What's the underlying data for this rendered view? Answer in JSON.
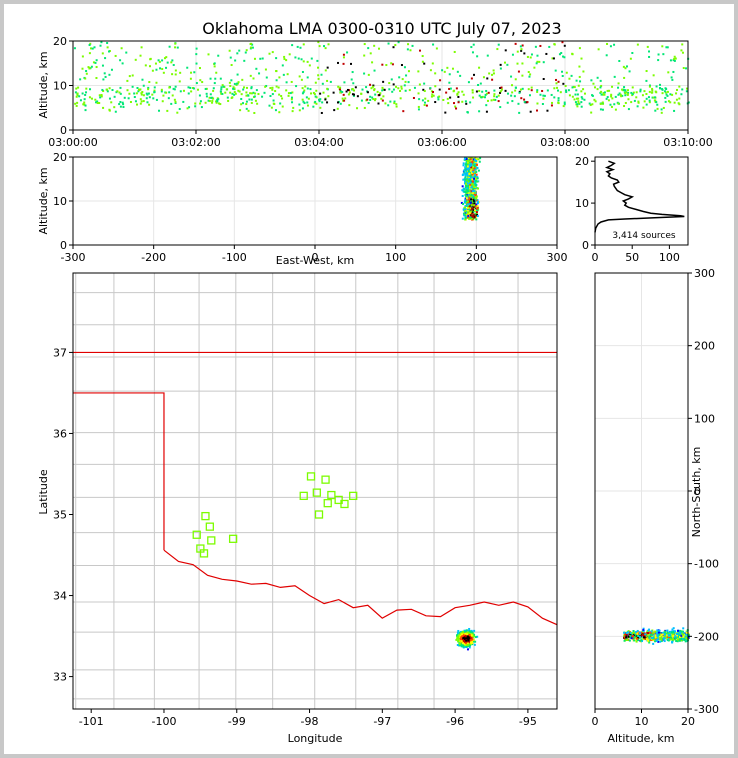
{
  "figure": {
    "title": "Oklahoma LMA 0300-0310 UTC July 07, 2023",
    "source_count_label": "3,414 sources"
  },
  "colors": {
    "frame": "#c8c8c8",
    "grid": "#e6e6e6",
    "county_lines": "#c8c8c8",
    "state_border": "#e00000",
    "stations": "#7cfc00",
    "profile_line": "#000000",
    "density_scale": [
      "#0000ff",
      "#00bfff",
      "#00e676",
      "#7cfc00",
      "#ffff00",
      "#ff4000",
      "#c00000",
      "#000000"
    ]
  },
  "chart_data": [
    {
      "type": "scatter",
      "panel": "time-height",
      "xlabel": "",
      "ylabel": "Altitude, km",
      "xlim_min": [
        0,
        10
      ],
      "ylim": [
        0,
        20
      ],
      "x_ticks": [
        "03:00:00",
        "03:02:00",
        "03:04:00",
        "03:06:00",
        "03:08:00",
        "03:10:00"
      ],
      "y_ticks": [
        0,
        10,
        20
      ],
      "grid": true,
      "density": "source density, colored"
    },
    {
      "type": "scatter",
      "panel": "east-west-height",
      "xlabel": "East-West, km",
      "ylabel": "Altitude, km",
      "xlim": [
        -300,
        300
      ],
      "ylim": [
        0,
        20
      ],
      "x_ticks": [
        -300,
        -200,
        -100,
        0,
        100,
        200,
        300
      ],
      "y_ticks": [
        0,
        10,
        20
      ],
      "cluster": {
        "x_range": [
          170,
          215
        ],
        "y_range": [
          6,
          20
        ]
      },
      "grid": true
    },
    {
      "type": "line",
      "panel": "altitude-histogram",
      "xlabel": "",
      "ylabel": "",
      "xlim": [
        0,
        125
      ],
      "ylim": [
        0,
        21
      ],
      "x_ticks": [
        0,
        50,
        100
      ],
      "y_ticks": [
        0,
        10,
        20
      ],
      "series": [
        {
          "altitude": [
            3,
            4,
            5,
            5.5,
            6,
            6.2,
            6.5,
            6.8,
            7,
            7.3,
            7.6,
            8,
            8.5,
            9,
            9.5,
            10,
            10.5,
            11,
            11.5,
            12,
            12.5,
            13,
            13.5,
            14,
            14.5,
            15,
            15.5,
            16,
            16.5,
            17,
            17.5,
            18,
            18.5,
            19,
            19.5,
            20
          ],
          "count": [
            0,
            1,
            4,
            8,
            18,
            40,
            80,
            120,
            115,
            90,
            75,
            65,
            55,
            45,
            40,
            42,
            38,
            45,
            50,
            40,
            35,
            30,
            28,
            26,
            25,
            32,
            30,
            22,
            18,
            20,
            16,
            24,
            16,
            22,
            26,
            18
          ]
        }
      ],
      "annotation": "3,414 sources"
    },
    {
      "type": "scatter",
      "panel": "plan-view",
      "xlabel": "Longitude",
      "ylabel": "Latitude",
      "xlim": [
        -101.25,
        -94.6
      ],
      "ylim": [
        32.6,
        37.98
      ],
      "x_ticks": [
        -101,
        -100,
        -99,
        -98,
        -97,
        -96,
        -95
      ],
      "y_ticks": [
        33,
        34,
        35,
        36,
        37
      ],
      "stations": [
        [
          -99.43,
          34.98
        ],
        [
          -99.37,
          34.85
        ],
        [
          -99.55,
          34.75
        ],
        [
          -99.35,
          34.68
        ],
        [
          -99.05,
          34.7
        ],
        [
          -99.5,
          34.58
        ],
        [
          -99.45,
          34.52
        ],
        [
          -97.98,
          35.47
        ],
        [
          -97.78,
          35.43
        ],
        [
          -98.08,
          35.23
        ],
        [
          -97.9,
          35.27
        ],
        [
          -97.7,
          35.24
        ],
        [
          -97.6,
          35.18
        ],
        [
          -97.4,
          35.23
        ],
        [
          -97.75,
          35.14
        ],
        [
          -97.52,
          35.13
        ],
        [
          -97.87,
          35.0
        ]
      ],
      "cluster": {
        "lon_range": [
          -96.2,
          -95.6
        ],
        "lat_range": [
          33.1,
          33.8
        ],
        "core": [
          -95.86,
          33.48
        ]
      }
    },
    {
      "type": "scatter",
      "panel": "north-south-height",
      "xlabel": "Altitude, km",
      "ylabel": "North-South, km",
      "xlim": [
        0,
        20
      ],
      "ylim": [
        -300,
        300
      ],
      "x_ticks": [
        0,
        10,
        20
      ],
      "y_ticks": [
        -300,
        -200,
        -100,
        0,
        100,
        200,
        300
      ],
      "cluster": {
        "alt_range": [
          6,
          20
        ],
        "ns_range": [
          -215,
          -180
        ]
      },
      "grid": true
    }
  ]
}
